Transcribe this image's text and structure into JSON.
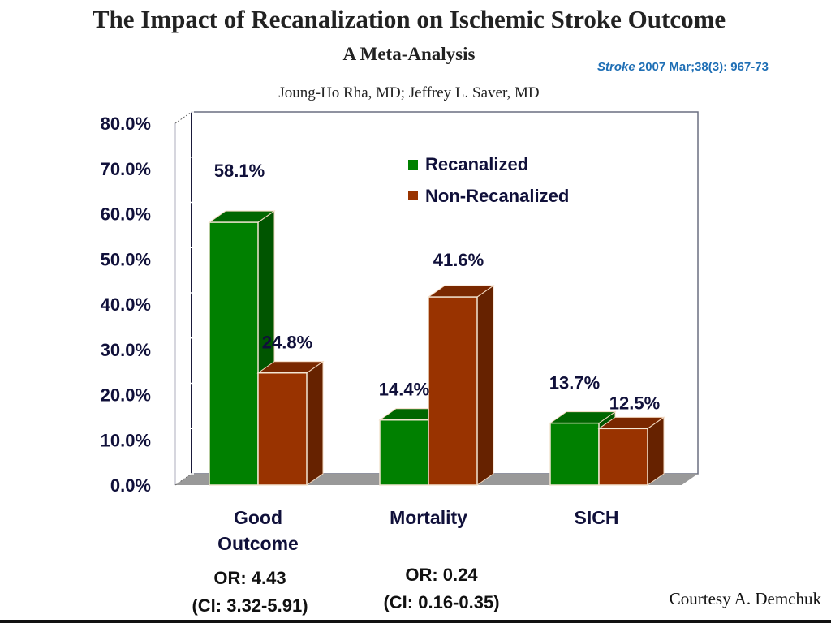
{
  "header": {
    "title": "The Impact of Recanalization on Ischemic Stroke Outcome",
    "subtitle": "A Meta-Analysis",
    "citation_journal": "Stroke",
    "citation_rest": " 2007 Mar;38(3): 967-73",
    "authors": "Joung-Ho Rha, MD; Jeffrey L. Saver, MD"
  },
  "chart_data": {
    "type": "bar",
    "style": "3d-clustered",
    "title": "",
    "xlabel": "",
    "ylabel": "",
    "ylim": [
      0,
      80
    ],
    "yticks": [
      "0.0%",
      "10.0%",
      "20.0%",
      "30.0%",
      "40.0%",
      "50.0%",
      "60.0%",
      "70.0%",
      "80.0%"
    ],
    "ytick_values": [
      0,
      10,
      20,
      30,
      40,
      50,
      60,
      70,
      80
    ],
    "categories": [
      "Good Outcome",
      "Mortality",
      "SICH"
    ],
    "category_lines": [
      [
        "Good",
        "Outcome"
      ],
      [
        "Mortality"
      ],
      [
        "SICH"
      ]
    ],
    "series": [
      {
        "name": "Recanalized",
        "values": [
          58.1,
          14.4,
          13.7
        ],
        "labels": [
          "58.1%",
          "14.4%",
          "13.7%"
        ],
        "color": "#008000",
        "side_color": "#005500",
        "top_color": "#006600"
      },
      {
        "name": "Non-Recanalized",
        "values": [
          24.8,
          41.6,
          12.5
        ],
        "labels": [
          "24.8%",
          "41.6%",
          "12.5%"
        ],
        "color": "#993300",
        "side_color": "#662200",
        "top_color": "#7a2800"
      }
    ],
    "legend_position": "top-right",
    "grid": false
  },
  "odds_ratios": [
    {
      "or": "OR: 4.43",
      "ci": "(CI: 3.32-5.91)"
    },
    {
      "or": "OR: 0.24",
      "ci": "(CI: 0.16-0.35)"
    }
  ],
  "footer": {
    "courtesy": "Courtesy A. Demchuk"
  }
}
